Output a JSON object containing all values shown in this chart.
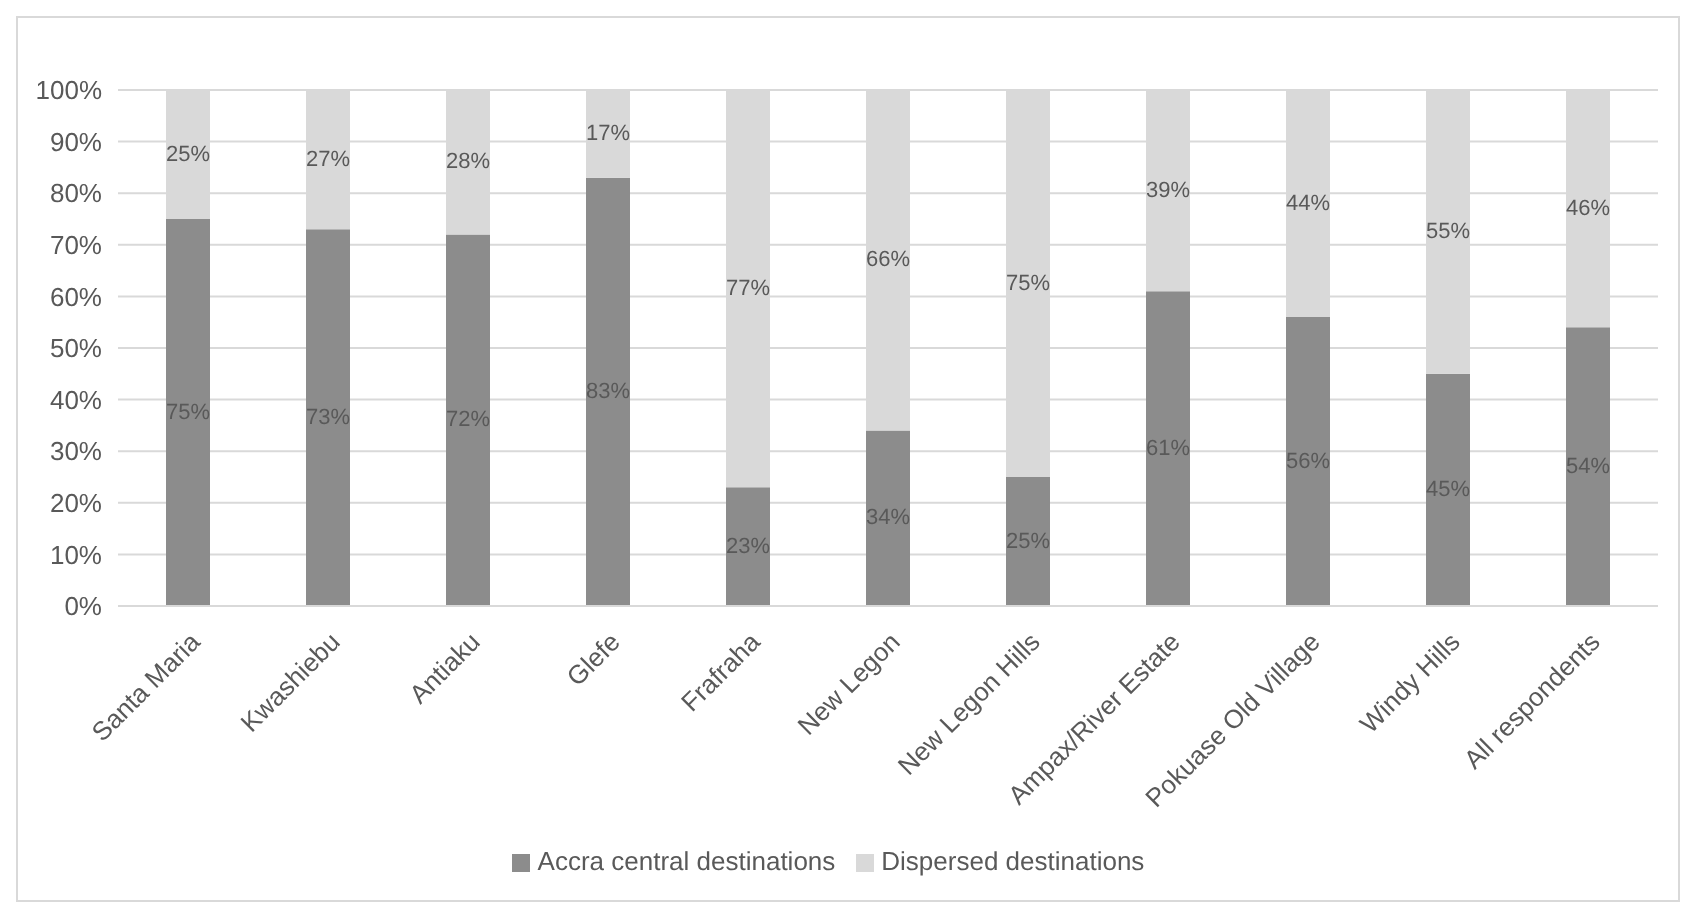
{
  "chart_data": {
    "type": "bar",
    "stacked": true,
    "categories": [
      "Santa Maria",
      "Kwashiebu",
      "Antiaku",
      "Glefe",
      "Frafraha",
      "New Legon",
      "New Legon Hills",
      "Ampax/River Estate",
      "Pokuase Old Village",
      "Windy Hills",
      "All respondents"
    ],
    "series": [
      {
        "name": "Accra central destinations",
        "color": "#8c8c8c",
        "values": [
          75,
          73,
          72,
          83,
          23,
          34,
          25,
          61,
          56,
          45,
          54
        ],
        "value_labels": [
          "75%",
          "73%",
          "72%",
          "83%",
          "23%",
          "34%",
          "25%",
          "61%",
          "56%",
          "45%",
          "54%"
        ]
      },
      {
        "name": "Dispersed destinations",
        "color": "#d9d9d9",
        "values": [
          25,
          27,
          28,
          17,
          77,
          66,
          75,
          39,
          44,
          55,
          46
        ],
        "value_labels": [
          "25%",
          "27%",
          "28%",
          "17%",
          "77%",
          "66%",
          "75%",
          "39%",
          "44%",
          "55%",
          "46%"
        ]
      }
    ],
    "ylim": [
      0,
      100
    ],
    "yticks": [
      {
        "value": 0,
        "label": "0%"
      },
      {
        "value": 10,
        "label": "10%"
      },
      {
        "value": 20,
        "label": "20%"
      },
      {
        "value": 30,
        "label": "30%"
      },
      {
        "value": 40,
        "label": "40%"
      },
      {
        "value": 50,
        "label": "50%"
      },
      {
        "value": 60,
        "label": "60%"
      },
      {
        "value": 70,
        "label": "70%"
      },
      {
        "value": 80,
        "label": "80%"
      },
      {
        "value": 90,
        "label": "90%"
      },
      {
        "value": 100,
        "label": "100%"
      }
    ],
    "grid": "y",
    "legend": "bottom"
  }
}
